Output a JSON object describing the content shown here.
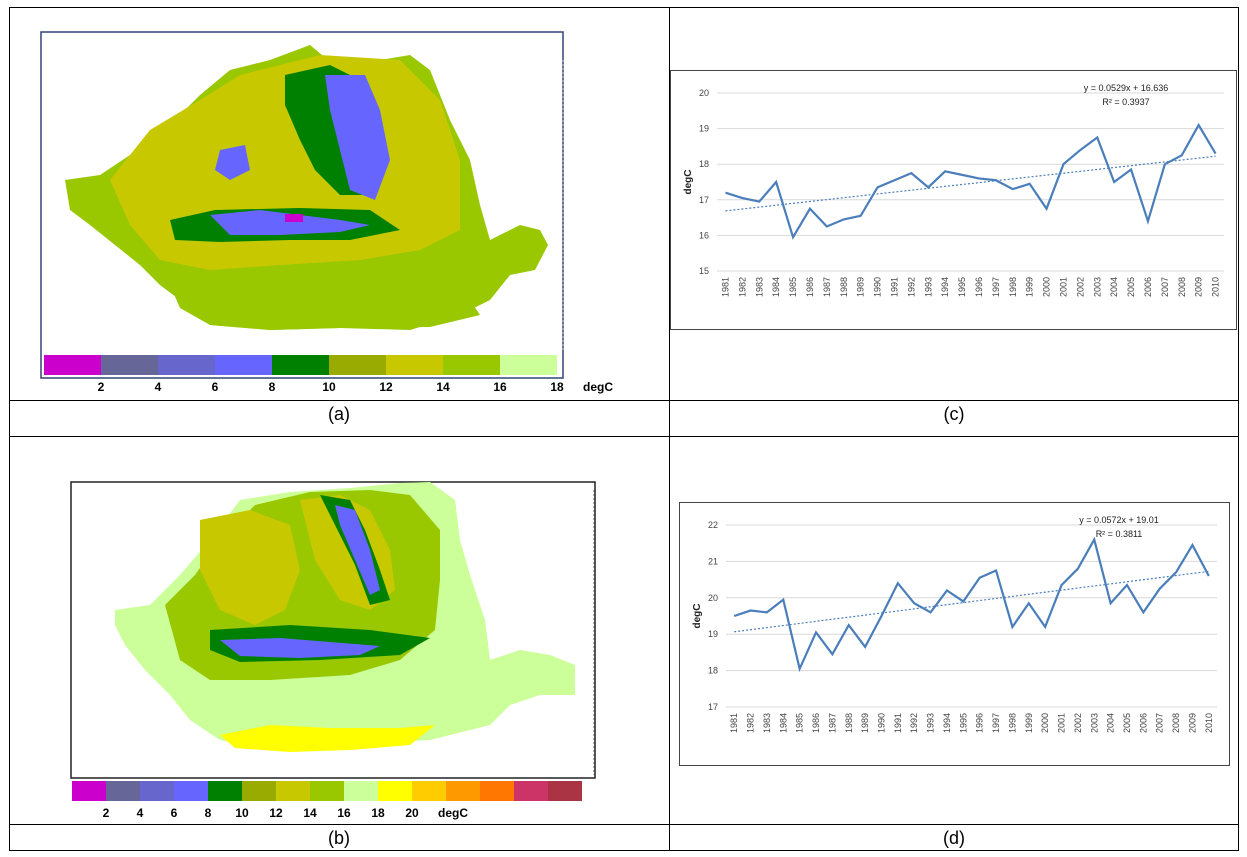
{
  "captions": {
    "a": "(a)",
    "b": "(b)",
    "c": "(c)",
    "d": "(d)"
  },
  "maps": [
    {
      "id": "a",
      "legend_colors": [
        "#cc00cc",
        "#666699",
        "#6666cc",
        "#6666ff",
        "#008000",
        "#99aa00",
        "#c8c800",
        "#99c800",
        "#ccff99"
      ],
      "legend_ticks": [
        "2",
        "4",
        "6",
        "8",
        "10",
        "12",
        "14",
        "16",
        "18"
      ],
      "legend_unit": "degC"
    },
    {
      "id": "b",
      "legend_colors": [
        "#cc00cc",
        "#666699",
        "#6666cc",
        "#6666ff",
        "#008000",
        "#99aa00",
        "#c8c800",
        "#99c800",
        "#ccff99",
        "#ffff00",
        "#ffcc00",
        "#ff9900",
        "#ff7700",
        "#cc3366",
        "#aa3344"
      ],
      "legend_ticks": [
        "2",
        "4",
        "6",
        "8",
        "10",
        "12",
        "14",
        "16",
        "18",
        "20"
      ],
      "legend_unit": "degC"
    }
  ],
  "chart_data": [
    {
      "type": "line",
      "id": "c",
      "x": [
        "1981",
        "1982",
        "1983",
        "1984",
        "1985",
        "1986",
        "1987",
        "1988",
        "1989",
        "1990",
        "1991",
        "1992",
        "1993",
        "1994",
        "1995",
        "1996",
        "1997",
        "1998",
        "1999",
        "2000",
        "2001",
        "2002",
        "2003",
        "2004",
        "2005",
        "2006",
        "2007",
        "2008",
        "2009",
        "2010"
      ],
      "series": [
        {
          "values": [
            17.2,
            17.05,
            16.95,
            17.5,
            15.95,
            16.75,
            16.25,
            16.45,
            16.55,
            17.35,
            17.55,
            17.75,
            17.35,
            17.8,
            17.7,
            17.6,
            17.55,
            17.3,
            17.45,
            16.75,
            18.0,
            18.4,
            18.75,
            17.5,
            17.85,
            16.4,
            18.0,
            18.25,
            19.1,
            18.3
          ]
        }
      ],
      "trendline": {
        "slope": 0.0529,
        "intercept": 16.636
      },
      "equation": "y = 0.0529x + 16.636",
      "r2": "R² = 0.3937",
      "ylabel": "degC",
      "ylim": [
        15,
        20
      ],
      "yticks": [
        "15",
        "16",
        "17",
        "18",
        "19",
        "20"
      ],
      "line_color": "#4a7ebb",
      "trend_color": "#4a7ebb",
      "grid": true
    },
    {
      "type": "line",
      "id": "d",
      "x": [
        "1981",
        "1982",
        "1983",
        "1984",
        "1985",
        "1986",
        "1987",
        "1988",
        "1989",
        "1990",
        "1991",
        "1992",
        "1993",
        "1994",
        "1995",
        "1996",
        "1997",
        "1998",
        "1999",
        "2000",
        "2001",
        "2002",
        "2003",
        "2004",
        "2005",
        "2006",
        "2007",
        "2008",
        "2009",
        "2010"
      ],
      "series": [
        {
          "values": [
            19.5,
            19.65,
            19.6,
            19.95,
            18.05,
            19.05,
            18.45,
            19.25,
            18.65,
            19.5,
            20.4,
            19.85,
            19.6,
            20.2,
            19.9,
            20.55,
            20.75,
            19.2,
            19.85,
            19.2,
            20.35,
            20.8,
            21.6,
            19.85,
            20.35,
            19.6,
            20.25,
            20.7,
            21.45,
            20.6
          ]
        }
      ],
      "trendline": {
        "slope": 0.0572,
        "intercept": 19.01
      },
      "equation": "y = 0.0572x + 19.01",
      "r2": "R² = 0.3811",
      "ylabel": "degC",
      "ylim": [
        17,
        22
      ],
      "yticks": [
        "17",
        "18",
        "19",
        "20",
        "21",
        "22"
      ],
      "line_color": "#4a7ebb",
      "trend_color": "#4a7ebb",
      "grid": true
    }
  ]
}
